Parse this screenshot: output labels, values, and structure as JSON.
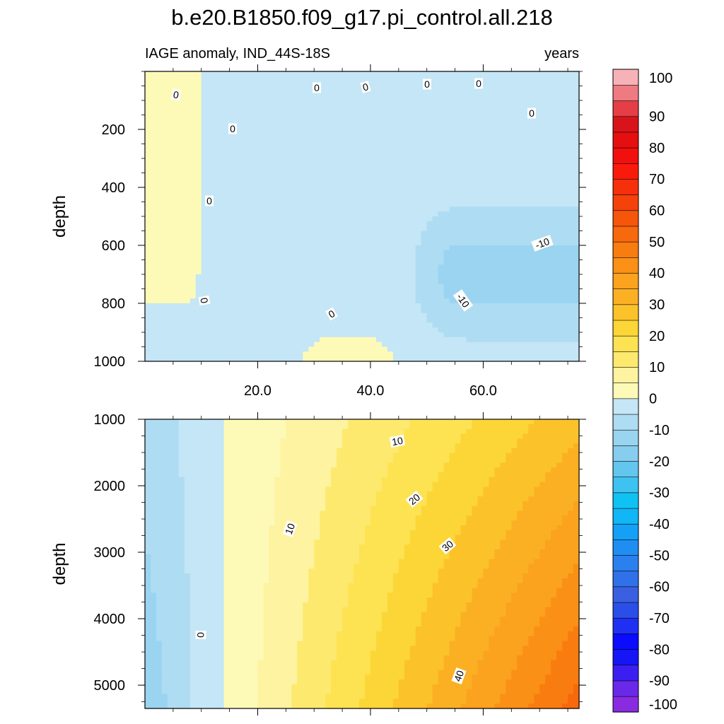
{
  "chart_data": {
    "type": "heatmap",
    "title": "b.e20.B1850.f09_g17.pi_control.all.218",
    "subtitle_left": "IAGE anomaly, IND_44S-18S",
    "subtitle_right": "years",
    "ylabel": "depth",
    "xlim": [
      0,
      77
    ],
    "x_ticks": [
      "20.0",
      "40.0",
      "60.0"
    ],
    "x_tick_values": [
      20,
      40,
      60
    ],
    "panels": [
      {
        "name": "upper",
        "ylim": [
          0,
          1000
        ],
        "y_reversed": true,
        "y_ticks": [
          "200",
          "400",
          "600",
          "800",
          "1000"
        ],
        "y_tick_values": [
          200,
          400,
          600,
          800,
          1000
        ],
        "contour_labels": [
          "0",
          "0",
          "0",
          "0",
          "0",
          "0",
          "0",
          "0",
          "0",
          "0",
          "-10",
          "-10"
        ],
        "value_range": [
          -12,
          4
        ]
      },
      {
        "name": "lower",
        "ylim": [
          1000,
          5350
        ],
        "y_reversed": true,
        "y_ticks": [
          "1000",
          "2000",
          "3000",
          "4000",
          "5000"
        ],
        "y_tick_values": [
          1000,
          2000,
          3000,
          4000,
          5000
        ],
        "contour_labels": [
          "10",
          "10",
          "20",
          "30",
          "40",
          "0"
        ],
        "value_range": [
          -7,
          58
        ]
      }
    ],
    "colorbar": {
      "levels": [
        -100,
        -95,
        -90,
        -85,
        -80,
        -75,
        -70,
        -65,
        -60,
        -55,
        -50,
        -45,
        -40,
        -35,
        -30,
        -25,
        -20,
        -15,
        -10,
        -5,
        0,
        5,
        10,
        15,
        20,
        25,
        30,
        35,
        40,
        45,
        50,
        55,
        60,
        65,
        70,
        75,
        80,
        85,
        90,
        95,
        100
      ],
      "labels": [
        "100",
        "90",
        "80",
        "70",
        "60",
        "50",
        "40",
        "30",
        "20",
        "10",
        "0",
        "-10",
        "-20",
        "-30",
        "-40",
        "-50",
        "-60",
        "-70",
        "-80",
        "-90",
        "-100"
      ],
      "colors": [
        "#8a2be2",
        "#6a28e8",
        "#3b1ff0",
        "#1515f5",
        "#0b0bff",
        "#2030f2",
        "#2a4ee8",
        "#3a5fe0",
        "#3070e8",
        "#2a80ee",
        "#1e8ef2",
        "#14a0f6",
        "#10b6f6",
        "#10c2f4",
        "#3ec3f0",
        "#62c6ef",
        "#86cdee",
        "#9ad4f0",
        "#aedcf2",
        "#c4e6f6",
        "#fdfab8",
        "#fdf3a0",
        "#fde96e",
        "#fde252",
        "#fcd636",
        "#fcc22a",
        "#fbb024",
        "#fba21e",
        "#fa9016",
        "#f97c10",
        "#f8680c",
        "#f5560a",
        "#f4420a",
        "#f5300a",
        "#fa1a0c",
        "#f0100e",
        "#e50f0f",
        "#d8141a",
        "#e53e46",
        "#ee7a82",
        "#f7b2b8"
      ]
    }
  }
}
